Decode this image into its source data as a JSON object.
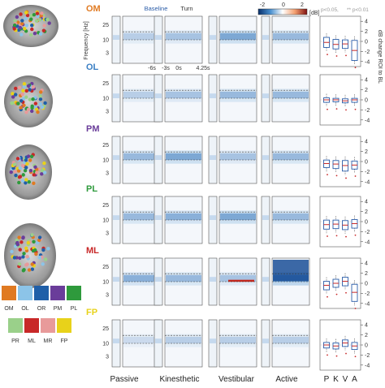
{
  "rows": [
    {
      "label": "OM",
      "color": "#e07a22"
    },
    {
      "label": "OL",
      "color": "#3a7fc4"
    },
    {
      "label": "PM",
      "color": "#6a3d9a"
    },
    {
      "label": "PL",
      "color": "#2e9a3c"
    },
    {
      "label": "ML",
      "color": "#c82828"
    },
    {
      "label": "FP",
      "color": "#e8d21a"
    }
  ],
  "conditions": [
    "Passive",
    "Kinesthetic",
    "Vestibular",
    "Active"
  ],
  "condition_letters": [
    "P",
    "K",
    "V",
    "A"
  ],
  "freq_axis": {
    "label": "Frequency [Hz]",
    "ticks": [
      "25",
      "10",
      "3"
    ]
  },
  "time_ticks": [
    "-6s",
    "-3s",
    "0s",
    "4.25s"
  ],
  "phase_labels": {
    "baseline": "Baseline",
    "turn": "Turn"
  },
  "colorbar": {
    "ticks": [
      "-2",
      "0",
      "2"
    ],
    "unit": "[dB]"
  },
  "significance": {
    "p05": "p<0.05,",
    "p01": "** p<0.01"
  },
  "box_axis": {
    "label": "dB change ROI to BL",
    "ticks": [
      "4",
      "2",
      "0",
      "-2",
      "-4"
    ]
  },
  "legend": {
    "row1": [
      {
        "name": "OM",
        "color": "#e07a22"
      },
      {
        "name": "OL",
        "color": "#8cc4e8"
      },
      {
        "name": "OR",
        "color": "#1f5fa8"
      },
      {
        "name": "PM",
        "color": "#6a3d9a"
      },
      {
        "name": "PL",
        "color": "#2e9a3c"
      }
    ],
    "row2": [
      {
        "name": "PR",
        "color": "#9ad08a"
      },
      {
        "name": "ML",
        "color": "#c82828"
      },
      {
        "name": "MR",
        "color": "#e89a9a"
      },
      {
        "name": "FP",
        "color": "#e8d21a"
      }
    ]
  }
}
